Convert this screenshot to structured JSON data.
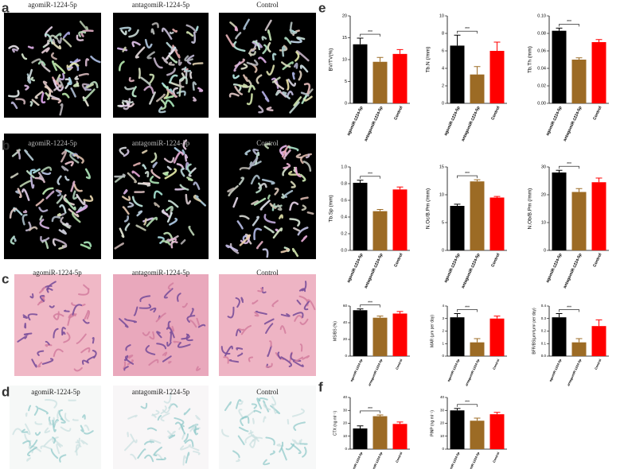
{
  "images": {
    "rows": [
      {
        "label": "a",
        "captions": [
          "agomiR-1224-5p",
          "antagomiR-1224-5p",
          "Control"
        ]
      },
      {
        "label": "b",
        "captions": [
          "agomiR-1224-5p",
          "antagomiR-1224-5p",
          "Control"
        ]
      },
      {
        "label": "c",
        "captions": [
          "agomiR-1224-5p",
          "antagomiR-1224-5p",
          "Control"
        ]
      },
      {
        "label": "d",
        "captions": [
          "agomiR-1224-5p",
          "antagomiR-1224-5p",
          "Control"
        ]
      }
    ]
  },
  "chart_panels": [
    "e",
    "f"
  ],
  "chart_data": [
    {
      "type": "bar",
      "y_label": "BV/TV(%)",
      "categories": [
        "agomiR-1224-5p",
        "antagomiR-1224-5p",
        "Control"
      ],
      "colors": [
        "#000000",
        "#9c6b25",
        "#ff0000"
      ],
      "values": [
        13.5,
        9.5,
        11.3
      ],
      "errors": [
        1.4,
        1.0,
        1.0
      ],
      "ylim": [
        0,
        20
      ],
      "yticks": [
        0,
        5,
        10,
        15,
        20
      ],
      "annotation": "***"
    },
    {
      "type": "bar",
      "y_label": "Tb.N (/mm)",
      "categories": [
        "agomiR-1224-5p",
        "antagomiR-1224-5p",
        "Control"
      ],
      "colors": [
        "#000000",
        "#9c6b25",
        "#ff0000"
      ],
      "values": [
        6.6,
        3.3,
        6.0
      ],
      "errors": [
        1.2,
        0.9,
        1.0
      ],
      "ylim": [
        0,
        10
      ],
      "yticks": [
        0,
        2,
        4,
        6,
        8,
        10
      ],
      "annotation": "***"
    },
    {
      "type": "bar",
      "y_label": "Tb.Th (mm)",
      "categories": [
        "agomiR-1224-5p",
        "antagomiR-1224-5p",
        "Control"
      ],
      "colors": [
        "#000000",
        "#9c6b25",
        "#ff0000"
      ],
      "values": [
        0.083,
        0.05,
        0.07
      ],
      "errors": [
        0.003,
        0.002,
        0.003
      ],
      "ylim": [
        0,
        0.1
      ],
      "yticks": [
        {
          "value": 0,
          "label": "0.00"
        },
        {
          "value": 0.02,
          "label": "0.02"
        },
        {
          "value": 0.04,
          "label": "0.04"
        },
        {
          "value": 0.06,
          "label": "0.06"
        },
        {
          "value": 0.08,
          "label": "0.08"
        },
        {
          "value": 0.1,
          "label": "0.10"
        }
      ],
      "annotation": "***"
    },
    {
      "type": "bar",
      "y_label": "Tb.Sp (mm)",
      "categories": [
        "agomiR-1224-5p",
        "antagomiR-1224-5p",
        "Control"
      ],
      "colors": [
        "#000000",
        "#9c6b25",
        "#ff0000"
      ],
      "values": [
        0.81,
        0.47,
        0.73
      ],
      "errors": [
        0.03,
        0.02,
        0.03
      ],
      "ylim": [
        0,
        1
      ],
      "yticks": [
        {
          "value": 0,
          "label": "0.0"
        },
        {
          "value": 0.2,
          "label": "0.2"
        },
        {
          "value": 0.4,
          "label": "0.4"
        },
        {
          "value": 0.6,
          "label": "0.6"
        },
        {
          "value": 0.8,
          "label": "0.8"
        },
        {
          "value": 1,
          "label": "1.0"
        }
      ],
      "annotation": "***"
    },
    {
      "type": "bar",
      "y_label": "N.Oc/B.Pm (/mm)",
      "categories": [
        "agomiR-1224-5p",
        "antagomiR-1224-5p",
        "Control"
      ],
      "colors": [
        "#000000",
        "#9c6b25",
        "#ff0000"
      ],
      "values": [
        8.0,
        12.4,
        9.5
      ],
      "errors": [
        0.3,
        0.3,
        0.2
      ],
      "ylim": [
        0,
        15
      ],
      "yticks": [
        0,
        5,
        10,
        15
      ],
      "annotation": "***"
    },
    {
      "type": "bar",
      "y_label": "N.Ob/B.Pm (/mm)",
      "categories": [
        "agomiR-1224-5p",
        "antagomiR-1224-5p",
        "Control"
      ],
      "colors": [
        "#000000",
        "#9c6b25",
        "#ff0000"
      ],
      "values": [
        28,
        21,
        24.5
      ],
      "errors": [
        0.8,
        1.2,
        1.5
      ],
      "ylim": [
        0,
        30
      ],
      "yticks": [
        0,
        10,
        20,
        30
      ],
      "annotation": "***"
    },
    {
      "type": "bar",
      "y_label": "MS/BS (%)",
      "categories": [
        "agomiR-1224-5p",
        "antagomiR-1224-5p",
        "Control"
      ],
      "colors": [
        "#000000",
        "#9c6b25",
        "#ff0000"
      ],
      "values": [
        55,
        46,
        51
      ],
      "errors": [
        1.5,
        2,
        2.5
      ],
      "ylim": [
        0,
        60
      ],
      "yticks": [
        0,
        20,
        40,
        60
      ],
      "annotation": "***"
    },
    {
      "type": "bar",
      "y_label": "MAR (μm per day)",
      "categories": [
        "agomiR-1224-5p",
        "antagomiR-1224-5p",
        "Control"
      ],
      "colors": [
        "#000000",
        "#9c6b25",
        "#ff0000"
      ],
      "values": [
        3.1,
        1.1,
        3.0
      ],
      "errors": [
        0.3,
        0.3,
        0.2
      ],
      "ylim": [
        0,
        4
      ],
      "yticks": [
        0,
        1,
        2,
        3,
        4
      ],
      "annotation": "***"
    },
    {
      "type": "bar",
      "y_label": "BFR/BS(μm³/μm² per day)",
      "categories": [
        "agomiR-1224-5p",
        "antagomiR-1224-5p",
        "Control"
      ],
      "colors": [
        "#000000",
        "#9c6b25",
        "#ff0000"
      ],
      "values": [
        0.31,
        0.11,
        0.24
      ],
      "errors": [
        0.03,
        0.03,
        0.05
      ],
      "ylim": [
        0,
        0.4
      ],
      "yticks": [
        {
          "value": 0,
          "label": "0.0"
        },
        {
          "value": 0.1,
          "label": "0.1"
        },
        {
          "value": 0.2,
          "label": "0.2"
        },
        {
          "value": 0.3,
          "label": "0.3"
        },
        {
          "value": 0.4,
          "label": "0.4"
        }
      ],
      "annotation": "***"
    },
    {
      "type": "bar",
      "y_label": "CTX (ng ml⁻¹)",
      "categories": [
        "agomiR-1224-5p",
        "antagomiR-1224-5p",
        "Control"
      ],
      "colors": [
        "#000000",
        "#9c6b25",
        "#ff0000"
      ],
      "values": [
        16,
        25.5,
        19.5
      ],
      "errors": [
        2,
        1,
        1.5
      ],
      "ylim": [
        0,
        40
      ],
      "yticks": [
        0,
        10,
        20,
        30,
        40
      ],
      "annotation": "***"
    },
    {
      "type": "bar",
      "y_label": "PINP (ng ml⁻¹)",
      "categories": [
        "agomiR-1224-5p",
        "antagomiR-1224-5p",
        "Control"
      ],
      "colors": [
        "#000000",
        "#9c6b25",
        "#ff0000"
      ],
      "values": [
        30,
        22,
        27
      ],
      "errors": [
        1.5,
        2,
        1.5
      ],
      "ylim": [
        0,
        40
      ],
      "yticks": [
        0,
        10,
        20,
        30,
        40
      ],
      "annotation": "***"
    }
  ]
}
